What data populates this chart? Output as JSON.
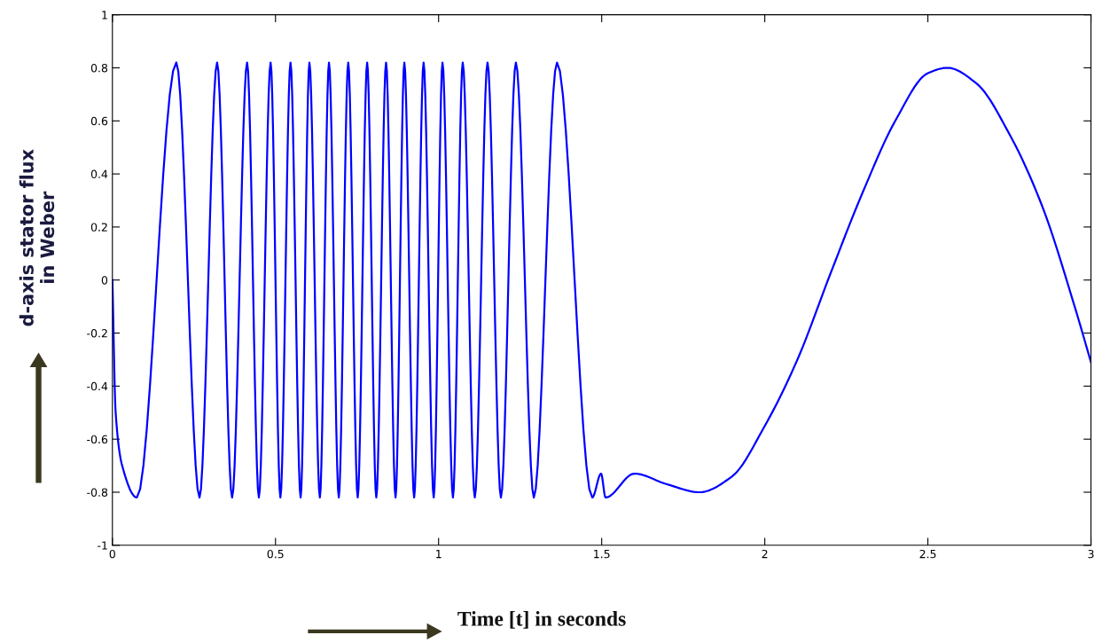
{
  "chart_data": {
    "type": "line",
    "xlabel": "Time [t] in seconds",
    "ylabel": "d-axis stator flux\nin Weber",
    "xlim": [
      0,
      3
    ],
    "ylim": [
      -1,
      1
    ],
    "xticks": [
      0,
      0.5,
      1,
      1.5,
      2,
      2.5,
      3
    ],
    "yticks": [
      -1,
      -0.8,
      -0.6,
      -0.4,
      -0.2,
      0,
      0.2,
      0.4,
      0.6,
      0.8,
      1
    ],
    "grid": false,
    "marker": "none",
    "line_style": "solid",
    "series": [
      {
        "color": "#0000ff",
        "x": [
          0,
          0.01,
          0.03,
          0.075,
          0.196,
          0.267,
          0.321,
          0.367,
          0.413,
          0.449,
          0.485,
          0.515,
          0.546,
          0.577,
          0.604,
          0.636,
          0.664,
          0.694,
          0.723,
          0.752,
          0.781,
          0.809,
          0.839,
          0.868,
          0.895,
          0.925,
          0.954,
          0.985,
          1.012,
          1.044,
          1.074,
          1.111,
          1.15,
          1.191,
          1.237,
          1.292,
          1.363,
          1.471,
          1.498,
          1.512,
          1.6,
          1.7,
          1.8,
          1.9,
          2.0,
          2.1,
          2.2,
          2.3,
          2.4,
          2.5,
          2.56,
          2.65,
          2.75,
          2.85,
          2.95,
          3.0
        ],
        "values": [
          0,
          -0.5,
          -0.7,
          -0.82,
          0.82,
          -0.82,
          0.82,
          -0.82,
          0.82,
          -0.82,
          0.82,
          -0.82,
          0.82,
          -0.82,
          0.82,
          -0.82,
          0.82,
          -0.82,
          0.82,
          -0.82,
          0.82,
          -0.82,
          0.82,
          -0.82,
          0.82,
          -0.82,
          0.82,
          -0.82,
          0.82,
          -0.82,
          0.82,
          -0.82,
          0.82,
          -0.82,
          0.82,
          -0.82,
          0.82,
          -0.82,
          -0.73,
          -0.82,
          -0.73,
          -0.77,
          -0.8,
          -0.74,
          -0.55,
          -0.3,
          0.02,
          0.33,
          0.6,
          0.78,
          0.8,
          0.74,
          0.55,
          0.28,
          -0.1,
          -0.31
        ]
      }
    ]
  }
}
